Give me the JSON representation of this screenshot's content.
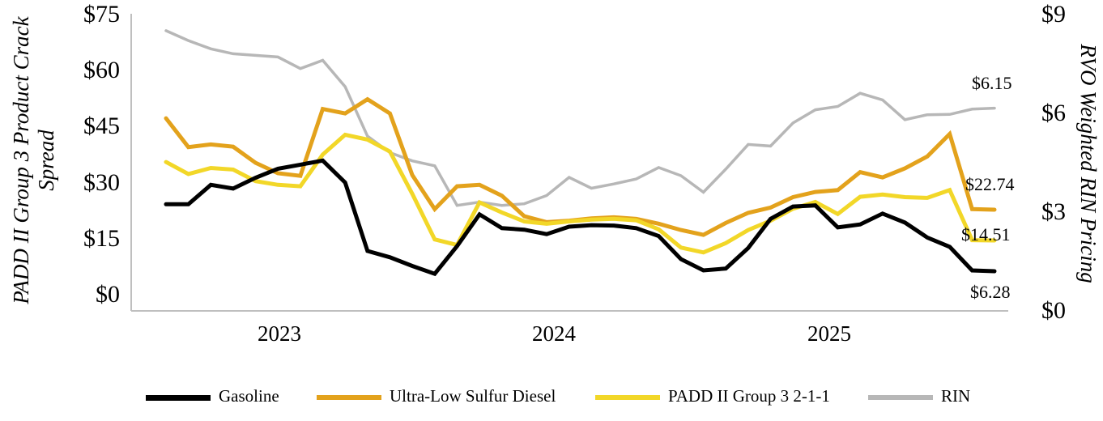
{
  "chart_data": {
    "type": "line",
    "title": "",
    "left_axis": {
      "title": "PADD II Group 3 Product Crack Spread",
      "title_line1": "PADD II Group 3 Product Crack",
      "title_line2": "Spread",
      "ticks": [
        {
          "label": "$75",
          "value": 75
        },
        {
          "label": "$60",
          "value": 60
        },
        {
          "label": "$45",
          "value": 45
        },
        {
          "label": "$30",
          "value": 30
        },
        {
          "label": "$15",
          "value": 15
        },
        {
          "label": "$0",
          "value": 0
        }
      ],
      "range": [
        0,
        75
      ]
    },
    "right_axis": {
      "title": "RVO Weighted RIN Pricing",
      "ticks": [
        {
          "label": "$9",
          "value": 9
        },
        {
          "label": "$6",
          "value": 6
        },
        {
          "label": "$3",
          "value": 3
        },
        {
          "label": "$0",
          "value": 0
        }
      ],
      "range": [
        0,
        9
      ]
    },
    "x_axis": {
      "year_labels": [
        "2023",
        "2024",
        "2025"
      ]
    },
    "grid": "off",
    "legend_position": "bottom",
    "series": [
      {
        "name": "RIN",
        "axis": "right",
        "color": "#b7b7b7",
        "end_label": "$6.15",
        "values": [
          8.5,
          8.2,
          7.95,
          7.8,
          7.75,
          7.7,
          7.35,
          7.6,
          6.8,
          5.3,
          4.8,
          4.55,
          4.4,
          3.2,
          3.3,
          3.2,
          3.25,
          3.5,
          4.05,
          3.72,
          3.85,
          4.0,
          4.35,
          4.1,
          3.6,
          4.3,
          5.05,
          5.0,
          5.7,
          6.1,
          6.2,
          6.6,
          6.4,
          5.8,
          5.95,
          5.96,
          6.12,
          6.15
        ]
      },
      {
        "name": "Ultra-Low Sulfur Diesel",
        "axis": "left",
        "color": "#e3a21c",
        "end_label": "$22.74",
        "values": [
          47.2,
          39.5,
          40.2,
          39.6,
          35.3,
          32.5,
          31.8,
          49.7,
          48.5,
          52.3,
          48.5,
          32.0,
          22.9,
          29.0,
          29.4,
          26.5,
          21.0,
          19.4,
          19.8,
          20.4,
          20.7,
          20.3,
          19.0,
          17.3,
          16.0,
          19.2,
          21.9,
          23.3,
          26.1,
          27.5,
          28.0,
          32.8,
          31.4,
          33.8,
          37.0,
          43.0,
          22.9,
          22.74
        ]
      },
      {
        "name": "PADD II Group 3 2-1-1",
        "axis": "left",
        "color": "#f2d728",
        "end_label": "$14.51",
        "values": [
          35.5,
          32.3,
          33.9,
          33.5,
          30.4,
          29.4,
          29.0,
          37.5,
          42.8,
          41.5,
          38.3,
          27.0,
          14.8,
          13.3,
          24.7,
          22.0,
          19.6,
          19.0,
          19.6,
          20.1,
          20.3,
          19.9,
          17.5,
          12.6,
          11.3,
          13.8,
          17.3,
          19.8,
          23.0,
          24.8,
          21.6,
          26.2,
          26.8,
          26.1,
          25.9,
          28.0,
          14.6,
          14.51
        ]
      },
      {
        "name": "Gasoline",
        "axis": "left",
        "color": "#000000",
        "end_label": "$6.28",
        "values": [
          24.2,
          24.2,
          29.4,
          28.4,
          31.3,
          33.7,
          34.8,
          35.9,
          30.0,
          11.7,
          10.0,
          7.7,
          5.6,
          13.0,
          21.5,
          17.8,
          17.4,
          16.2,
          18.2,
          18.6,
          18.5,
          17.8,
          15.7,
          9.5,
          6.5,
          7.0,
          12.5,
          20.3,
          23.6,
          23.9,
          18.0,
          18.8,
          21.7,
          19.3,
          15.3,
          12.8,
          6.5,
          6.28
        ]
      }
    ],
    "legend_order": [
      "Gasoline",
      "Ultra-Low Sulfur Diesel",
      "PADD II Group 3 2-1-1",
      "RIN"
    ],
    "axis_line_color": "#bfbfbf"
  }
}
